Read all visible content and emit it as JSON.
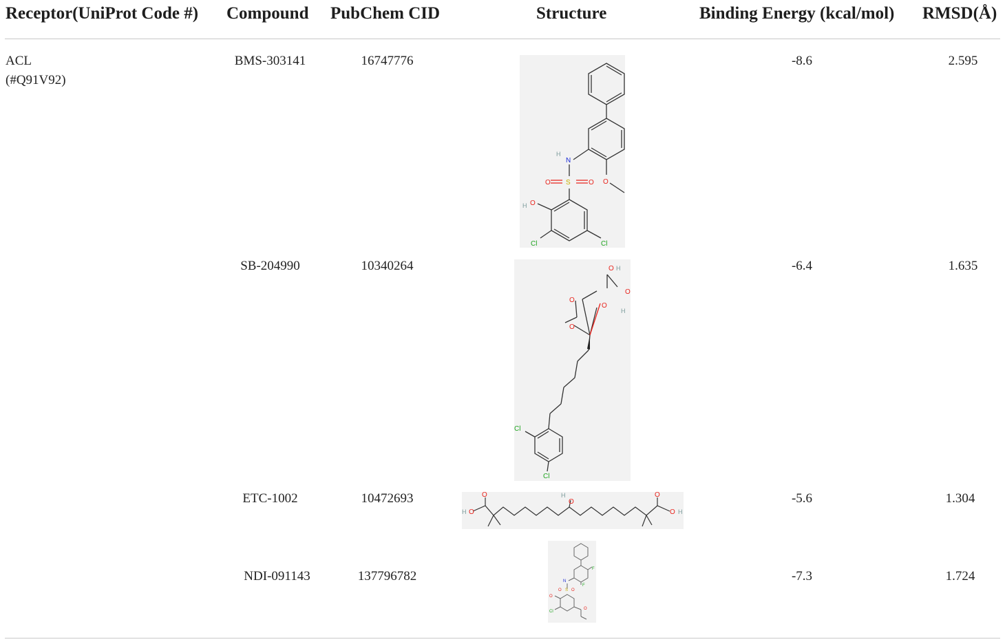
{
  "table": {
    "headers": {
      "receptor": "Receptor(UniProt Code #)",
      "compound": "Compound",
      "cid": "PubChem CID",
      "structure": "Structure",
      "energy": "Binding Energy (kcal/mol)",
      "rmsd": "RMSD(Å)"
    },
    "receptor": {
      "name": "ACL",
      "code": "(#Q91V92)"
    },
    "rows": [
      {
        "compound": "BMS-303141",
        "cid": "16747776",
        "energy": "-8.6",
        "rmsd": "2.595"
      },
      {
        "compound": "SB-204990",
        "cid": "10340264",
        "energy": "-6.4",
        "rmsd": "1.635"
      },
      {
        "compound": "ETC-1002",
        "cid": "10472693",
        "energy": "-5.6",
        "rmsd": "1.304"
      },
      {
        "compound": "NDI-091143",
        "cid": "137796782",
        "energy": "-7.3",
        "rmsd": "1.724"
      }
    ],
    "atoms": {
      "h": "H",
      "n": "N",
      "o": "O",
      "s": "S",
      "cl": "Cl",
      "f": "F"
    },
    "colors": {
      "oxygen": "#e8231c",
      "nitrogen": "#1a2bd6",
      "sulfur": "#d8c200",
      "chlorine": "#1fa41f",
      "hydrogen": "#7a9a9a",
      "fluorine": "#1fa41f"
    }
  }
}
